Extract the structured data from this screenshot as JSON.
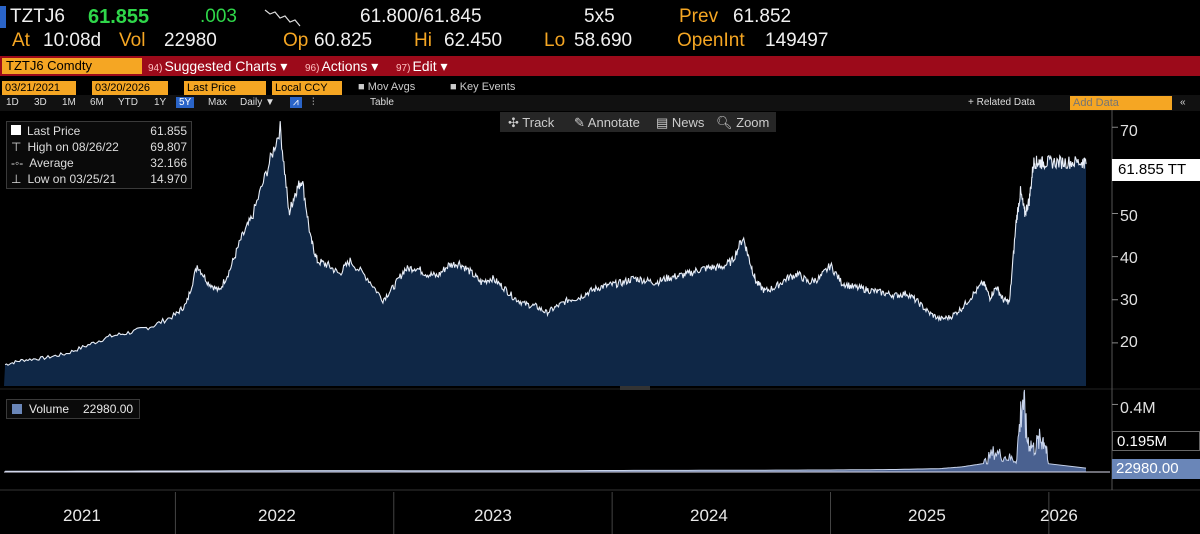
{
  "quote": {
    "ticker": "TZTJ6",
    "last": "61.855",
    "change": ".003",
    "bid_ask": "61.800/61.845",
    "size": "5x5",
    "prev_label": "Prev",
    "prev": "61.852",
    "at_label": "At",
    "time": "10:08d",
    "vol_label": "Vol",
    "vol": "22980",
    "op_label": "Op",
    "op": "60.825",
    "hi_label": "Hi",
    "hi": "62.450",
    "lo_label": "Lo",
    "lo": "58.690",
    "oi_label": "OpenInt",
    "oi": "149497"
  },
  "menubar": {
    "security": "TZTJ6 Comdty",
    "suggested": {
      "num": "94)",
      "label": "Suggested Charts"
    },
    "actions": {
      "num": "96)",
      "label": "Actions"
    },
    "edit": {
      "num": "97)",
      "label": "Edit"
    }
  },
  "controls": {
    "start_date": "03/21/2021",
    "end_date": "03/20/2026",
    "field": "Last Price",
    "currency": "Local CCY",
    "mov_avgs": "Mov Avgs",
    "key_events": "Key Events",
    "periods": [
      "1D",
      "3D",
      "1M",
      "6M",
      "YTD",
      "1Y",
      "5Y",
      "Max"
    ],
    "active_period": "5Y",
    "frequency": "Daily",
    "table": "Table",
    "related_data": "+ Related Data",
    "add_data_placeholder": "Add Data"
  },
  "tools": {
    "track": "Track",
    "annotate": "Annotate",
    "news": "News",
    "zoom": "Zoom"
  },
  "legend": {
    "last_price_label": "Last Price",
    "last_price": "61.855",
    "high_label": "High on 08/26/22",
    "high": "69.807",
    "average_label": "Average",
    "average": "32.166",
    "low_label": "Low on 03/25/21",
    "low": "14.970"
  },
  "volume_legend": {
    "label": "Volume",
    "value": "22980.00"
  },
  "price_tag": "61.855 TT",
  "volume_tags": {
    "top": "0.4M",
    "mid": "0.195M",
    "last": "22980.00"
  },
  "colors": {
    "background": "#000000",
    "accent": "#f5a623",
    "menu": "#9c0a1a",
    "area_fill": "#0f2746",
    "up": "#2fd74a"
  },
  "chart_data": [
    {
      "type": "area",
      "title": "",
      "xlabel": "",
      "ylabel": "",
      "ylim": [
        10,
        74
      ],
      "yticks": [
        20,
        30,
        40,
        50,
        60,
        70
      ],
      "xtick_labels": [
        "2021",
        "2022",
        "2023",
        "2024",
        "2025",
        "2026"
      ],
      "x_year_start": 2021.215,
      "series": [
        {
          "name": "Last Price",
          "x": [
            2021.22,
            2021.3,
            2021.4,
            2021.5,
            2021.6,
            2021.7,
            2021.8,
            2021.9,
            2022.0,
            2022.05,
            2022.1,
            2022.15,
            2022.2,
            2022.25,
            2022.3,
            2022.35,
            2022.42,
            2022.48,
            2022.52,
            2022.55,
            2022.58,
            2022.62,
            2022.65,
            2022.7,
            2022.75,
            2022.8,
            2022.88,
            2022.95,
            2023.0,
            2023.05,
            2023.1,
            2023.15,
            2023.2,
            2023.25,
            2023.3,
            2023.35,
            2023.4,
            2023.45,
            2023.5,
            2023.55,
            2023.6,
            2023.65,
            2023.7,
            2023.75,
            2023.8,
            2023.85,
            2023.9,
            2023.95,
            2024.0,
            2024.05,
            2024.1,
            2024.15,
            2024.2,
            2024.25,
            2024.3,
            2024.35,
            2024.4,
            2024.45,
            2024.5,
            2024.55,
            2024.6,
            2024.63,
            2024.66,
            2024.7,
            2024.75,
            2024.8,
            2024.85,
            2024.9,
            2024.95,
            2025.0,
            2025.05,
            2025.1,
            2025.15,
            2025.2,
            2025.25,
            2025.3,
            2025.35,
            2025.4,
            2025.45,
            2025.5,
            2025.55,
            2025.6,
            2025.65,
            2025.7,
            2025.73,
            2025.76,
            2025.79,
            2025.82,
            2025.85,
            2025.87,
            2025.89,
            2025.91,
            2025.93,
            2025.95,
            2025.97,
            2026.0,
            2026.05,
            2026.1,
            2026.15,
            2026.17,
            2026.2
          ],
          "values": [
            14.97,
            16.0,
            16.5,
            17.5,
            19.5,
            21.5,
            22.5,
            24.0,
            26.5,
            29.0,
            38.0,
            34.0,
            32.0,
            37.0,
            44.0,
            49.0,
            60.0,
            69.8,
            50.0,
            55.0,
            58.0,
            44.0,
            39.0,
            38.0,
            36.0,
            39.0,
            35.0,
            30.0,
            33.0,
            37.0,
            37.5,
            36.0,
            35.5,
            38.0,
            38.5,
            36.5,
            34.0,
            35.0,
            33.0,
            30.5,
            29.0,
            28.5,
            27.0,
            28.5,
            30.0,
            30.5,
            32.0,
            33.0,
            33.5,
            34.0,
            35.0,
            34.5,
            34.0,
            35.0,
            35.5,
            36.0,
            37.0,
            37.5,
            37.5,
            39.0,
            44.5,
            39.0,
            34.0,
            32.0,
            33.0,
            35.0,
            36.0,
            34.0,
            35.0,
            38.0,
            34.0,
            33.0,
            32.5,
            32.0,
            31.5,
            31.0,
            31.5,
            29.5,
            27.0,
            25.5,
            26.0,
            28.0,
            31.0,
            34.0,
            30.5,
            33.0,
            30.0,
            29.5,
            48.0,
            55.0,
            50.0,
            53.0,
            61.85,
            61.9,
            61.8,
            61.9,
            61.9,
            61.9,
            61.9,
            61.9,
            61.9
          ]
        }
      ]
    },
    {
      "type": "area",
      "title": "",
      "xlabel": "",
      "ylabel": "",
      "ylim": [
        0,
        0.45
      ],
      "yticks_labels": [
        "0.4M"
      ],
      "series": [
        {
          "name": "Volume",
          "x": [
            2021.22,
            2021.5,
            2022.0,
            2022.5,
            2023.0,
            2023.5,
            2024.0,
            2024.5,
            2025.0,
            2025.3,
            2025.5,
            2025.6,
            2025.7,
            2025.75,
            2025.8,
            2025.85,
            2025.88,
            2025.9,
            2025.93,
            2025.96,
            2025.98,
            2026.0
          ],
          "values": [
            0.004,
            0.005,
            0.006,
            0.008,
            0.008,
            0.007,
            0.009,
            0.01,
            0.012,
            0.015,
            0.02,
            0.03,
            0.05,
            0.12,
            0.09,
            0.07,
            0.45,
            0.2,
            0.14,
            0.19,
            0.195,
            0.023
          ]
        }
      ]
    }
  ]
}
